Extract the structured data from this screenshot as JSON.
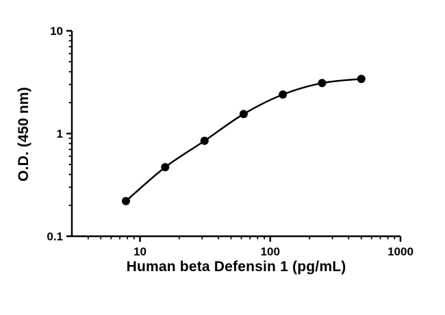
{
  "chart_data": {
    "type": "scatter",
    "title": "",
    "xlabel": "Human beta Defensin 1 (pg/mL)",
    "ylabel": "O.D. (450 nm)",
    "xscale": "log",
    "yscale": "log",
    "xlim": [
      3,
      1000
    ],
    "ylim": [
      0.1,
      10
    ],
    "x": [
      7.8,
      15.6,
      31.3,
      62.5,
      125,
      250,
      500
    ],
    "y": [
      0.22,
      0.47,
      0.85,
      1.55,
      2.4,
      3.1,
      3.4
    ],
    "x_major_ticks": [
      10,
      100,
      1000
    ],
    "x_tick_labels": [
      "10",
      "100",
      "1000"
    ],
    "y_major_ticks": [
      0.1,
      1,
      10
    ],
    "y_tick_labels": [
      "0.1",
      "1",
      "10"
    ],
    "marker_color": "#000000",
    "line_color": "#000000",
    "axis_color": "#000000",
    "background": "#ffffff",
    "grid": false,
    "legend": "none"
  }
}
